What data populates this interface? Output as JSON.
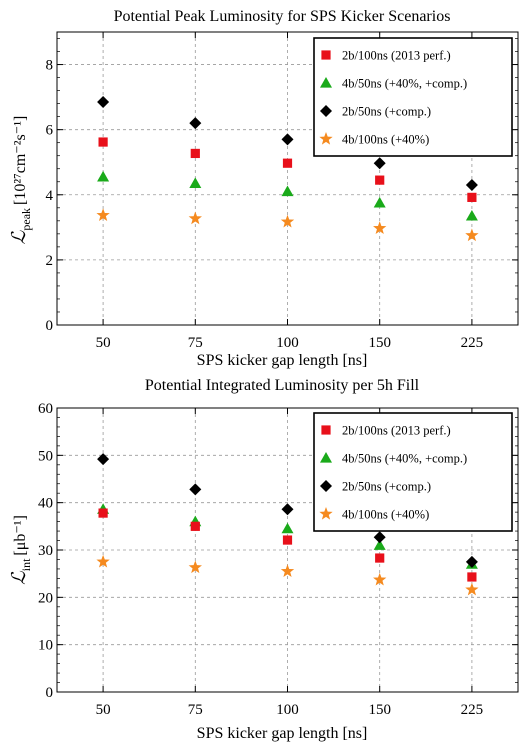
{
  "chart_data": [
    {
      "type": "scatter",
      "title": "Potential Peak Luminosity for SPS Kicker Scenarios",
      "xlabel": "SPS kicker gap length [ns]",
      "ylabel_symbol": "ℒ",
      "ylabel_sub": "peak",
      "ylabel_unit": "[10²⁷cm⁻²s⁻¹]",
      "categories": [
        "50",
        "75",
        "100",
        "150",
        "225"
      ],
      "ylim": [
        0,
        9
      ],
      "yticks": [
        "0",
        "2",
        "4",
        "6",
        "8"
      ],
      "ytick_values": [
        0,
        2,
        4,
        6,
        8
      ],
      "grid": true,
      "legend_position": "top-right",
      "series": [
        {
          "name": "2b/100ns (2013 perf.)",
          "marker": "square",
          "color": "#e8101a",
          "values": [
            5.62,
            5.27,
            4.97,
            4.45,
            3.92
          ]
        },
        {
          "name": "4b/50ns (+40%, +comp.)",
          "marker": "triangle",
          "color": "#1aaa1a",
          "values": [
            4.55,
            4.35,
            4.1,
            3.75,
            3.35
          ]
        },
        {
          "name": "2b/50ns (+comp.)",
          "marker": "diamond",
          "color": "#000000",
          "values": [
            6.85,
            6.2,
            5.7,
            4.97,
            4.3
          ]
        },
        {
          "name": "4b/100ns (+40%)",
          "marker": "star",
          "color": "#f58a1f",
          "values": [
            3.37,
            3.27,
            3.17,
            2.97,
            2.75
          ]
        }
      ]
    },
    {
      "type": "scatter",
      "title": "Potential Integrated Luminosity per 5h Fill",
      "xlabel": "SPS kicker gap length [ns]",
      "ylabel_symbol": "ℒ",
      "ylabel_sub": "int",
      "ylabel_unit": "[μb⁻¹]",
      "categories": [
        "50",
        "75",
        "100",
        "150",
        "225"
      ],
      "ylim": [
        0,
        60
      ],
      "yticks": [
        "0",
        "10",
        "20",
        "30",
        "40",
        "50",
        "60"
      ],
      "ytick_values": [
        0,
        10,
        20,
        30,
        40,
        50,
        60
      ],
      "grid": true,
      "legend_position": "top-right",
      "series": [
        {
          "name": "2b/100ns (2013 perf.)",
          "marker": "square",
          "color": "#e8101a",
          "values": [
            37.8,
            35.0,
            32.1,
            28.3,
            24.3
          ]
        },
        {
          "name": "4b/50ns (+40%, +comp.)",
          "marker": "triangle",
          "color": "#1aaa1a",
          "values": [
            38.6,
            36.0,
            34.5,
            31.0,
            27.0
          ]
        },
        {
          "name": "2b/50ns (+comp.)",
          "marker": "diamond",
          "color": "#000000",
          "values": [
            49.2,
            42.8,
            38.6,
            32.7,
            27.5
          ]
        },
        {
          "name": "4b/100ns (+40%)",
          "marker": "star",
          "color": "#f58a1f",
          "values": [
            27.5,
            26.3,
            25.5,
            23.7,
            21.6
          ]
        }
      ]
    }
  ]
}
